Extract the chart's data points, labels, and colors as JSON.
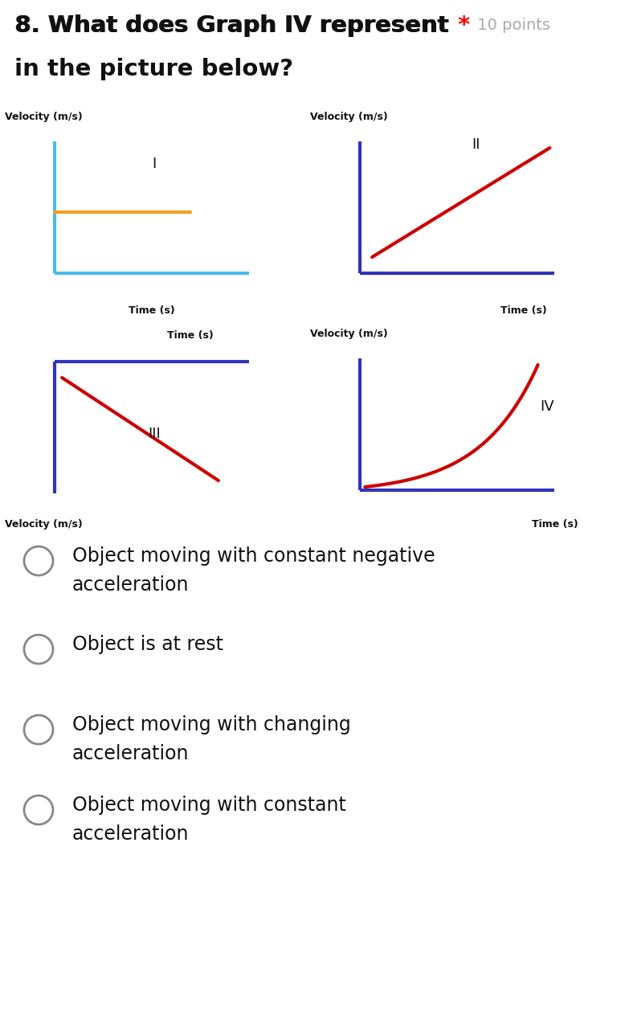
{
  "bg_color": "#ffffff",
  "axis_color_light_blue": "#4db8e8",
  "axis_color_dark_blue": "#3333bb",
  "line_color_orange": "#f5a020",
  "line_color_red": "#cc0000",
  "vel_label": "Velocity (m/s)",
  "time_label": "Time (s)",
  "title_main": "8. What does Graph IV represent",
  "title_star": "*",
  "title_points": "10 points",
  "title_sub": "in the picture below?",
  "roman": [
    "I",
    "II",
    "III",
    "IV"
  ],
  "options": [
    [
      "Object moving with constant negative",
      "acceleration"
    ],
    [
      "Object is at rest",
      ""
    ],
    [
      "Object moving with changing",
      "acceleration"
    ],
    [
      "Object moving with constant",
      "acceleration"
    ]
  ],
  "fig_width": 7.78,
  "fig_height": 12.88,
  "dpi": 100
}
